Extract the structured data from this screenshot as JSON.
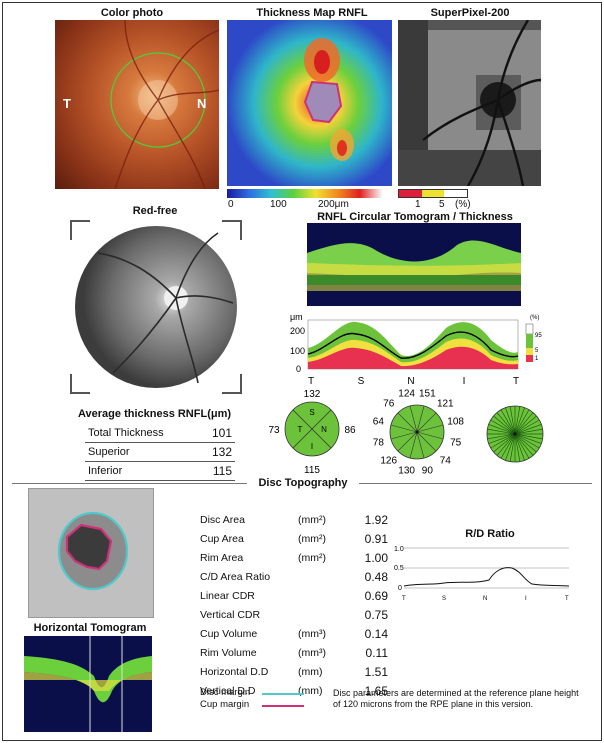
{
  "top": {
    "color_photo_title": "Color photo",
    "thickness_map_title": "Thickness Map RNFL",
    "superpixel_title": "SuperPixel-200",
    "color_photo_left_label": "T",
    "color_photo_right_label": "N",
    "thickness_scale_ticks": [
      "0",
      "100",
      "200μm"
    ],
    "superpixel_scale_ticks": [
      "1",
      "5",
      "(%)"
    ]
  },
  "redfree": {
    "title": "Red-free"
  },
  "tomogram": {
    "title": "RNFL Circular Tomogram / Thickness",
    "y_unit": "μm",
    "y_ticks": [
      "200",
      "100",
      "0"
    ],
    "x_ticks": [
      "T",
      "S",
      "N",
      "I",
      "T"
    ],
    "legend": [
      "(%)",
      "95",
      "5",
      "1"
    ]
  },
  "avg_thickness": {
    "title": "Average thickness RNFL(μm)",
    "rows": [
      {
        "label": "Total Thickness",
        "value": "101"
      },
      {
        "label": "Superior",
        "value": "132"
      },
      {
        "label": "Inferior",
        "value": "115"
      }
    ]
  },
  "quad_chart": {
    "top": "132",
    "left": "73",
    "right": "86",
    "bottom": "115",
    "q_top": "S",
    "q_left": "T",
    "q_right": "N",
    "q_bottom": "I"
  },
  "clock_chart": {
    "values": [
      "124",
      "151",
      "121",
      "108",
      "75",
      "74",
      "90",
      "130",
      "126",
      "78",
      "64",
      "76"
    ]
  },
  "disc_topography": {
    "title": "Disc Topography",
    "horizontal_tomogram_title": "Horizontal Tomogram",
    "params": [
      {
        "name": "Disc Area",
        "unit": "(mm²)",
        "value": "1.92"
      },
      {
        "name": "Cup Area",
        "unit": "(mm²)",
        "value": "0.91"
      },
      {
        "name": "Rim Area",
        "unit": "(mm²)",
        "value": "1.00"
      },
      {
        "name": "C/D Area Ratio",
        "unit": "",
        "value": "0.48"
      },
      {
        "name": "Linear CDR",
        "unit": "",
        "value": "0.69"
      },
      {
        "name": "Vertical CDR",
        "unit": "",
        "value": "0.75"
      },
      {
        "name": "Cup Volume",
        "unit": "(mm³)",
        "value": "0.14"
      },
      {
        "name": "Rim Volume",
        "unit": "(mm³)",
        "value": "0.11"
      },
      {
        "name": "Horizontal D.D",
        "unit": "(mm)",
        "value": "1.51"
      },
      {
        "name": "Vertical D.D",
        "unit": "(mm)",
        "value": "1.65"
      }
    ],
    "rd_ratio_title": "R/D Ratio",
    "rd_y_ticks": [
      "1.0",
      "0.5",
      "0"
    ],
    "rd_x_ticks": [
      "T",
      "S",
      "N",
      "I",
      "T"
    ],
    "legend_disc_margin": "Disc margin",
    "legend_cup_margin": "Cup margin",
    "note": "Disc parameters are determined at the reference plane height of 120 microns from the RPE plane in this version.",
    "disc_margin_color": "#4fc9c9",
    "cup_margin_color": "#d0307a"
  }
}
